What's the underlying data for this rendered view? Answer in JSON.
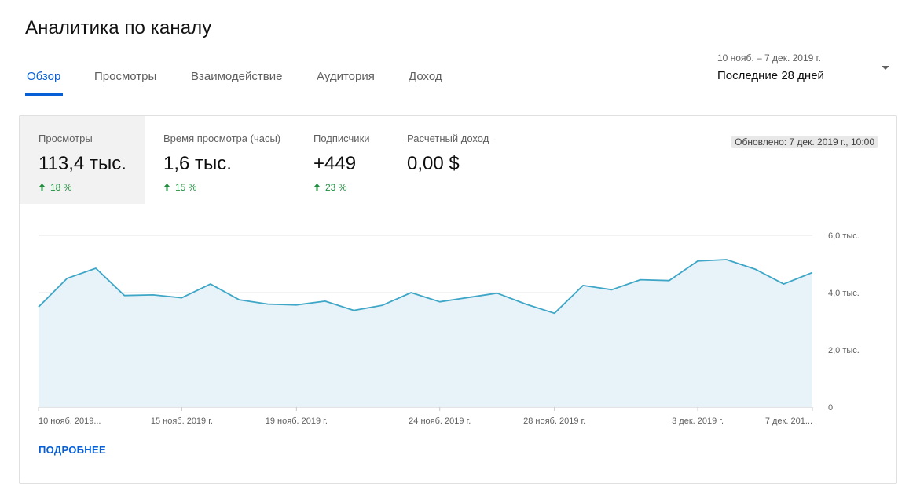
{
  "page": {
    "title": "Аналитика по каналу"
  },
  "tabs": [
    {
      "label": "Обзор",
      "active": true
    },
    {
      "label": "Просмотры",
      "active": false
    },
    {
      "label": "Взаимодействие",
      "active": false
    },
    {
      "label": "Аудитория",
      "active": false
    },
    {
      "label": "Доход",
      "active": false
    }
  ],
  "date_picker": {
    "range": "10 нояб. – 7 дек. 2019 г.",
    "period": "Последние 28 дней",
    "icon": "dropdown-arrow-icon"
  },
  "metrics": [
    {
      "label": "Просмотры",
      "value": "113,4 тыс.",
      "delta": "18 %",
      "selected": true
    },
    {
      "label": "Время просмотра (часы)",
      "value": "1,6 тыс.",
      "delta": "15 %",
      "selected": false
    },
    {
      "label": "Подписчики",
      "value": "+449",
      "delta": "23 %",
      "selected": false
    },
    {
      "label": "Расчетный доход",
      "value": "0,00 $",
      "delta": "",
      "selected": false,
      "icon": "clock-icon"
    }
  ],
  "updated": "Обновлено: 7 дек. 2019 г., 10:00",
  "more_link": "ПОДРОБНЕЕ",
  "colors": {
    "accent": "#065fd4",
    "line": "#3ea6c6",
    "area_fill": "#e8f3f9",
    "positive": "#1e8e3e",
    "selected_metric_bg": "#f2f2f2"
  },
  "chart_data": {
    "type": "area",
    "series": [
      {
        "values": [
          3500,
          4500,
          4850,
          3900,
          3920,
          3820,
          4300,
          3750,
          3600,
          3570,
          3700,
          3380,
          3560,
          4000,
          3680,
          3830,
          3980,
          3600,
          3280,
          4250,
          4100,
          4450,
          4420,
          5100,
          5150,
          4820,
          4300,
          4700
        ]
      }
    ],
    "x_start_label": "10 нояб. 2019...",
    "x_tick_labels": [
      {
        "index": 0,
        "label": "10 нояб. 2019..."
      },
      {
        "index": 5,
        "label": "15 нояб. 2019 г."
      },
      {
        "index": 9,
        "label": "19 нояб. 2019 г."
      },
      {
        "index": 14,
        "label": "24 нояб. 2019 г."
      },
      {
        "index": 18,
        "label": "28 нояб. 2019 г."
      },
      {
        "index": 23,
        "label": "3 дек. 2019 г."
      },
      {
        "index": 27,
        "label": "7 дек. 201..."
      }
    ],
    "y_ticks": [
      {
        "value": 0,
        "label": "0"
      },
      {
        "value": 2000,
        "label": "2,0 тыс."
      },
      {
        "value": 4000,
        "label": "4,0 тыс."
      },
      {
        "value": 6000,
        "label": "6,0 тыс."
      }
    ],
    "ylim": [
      0,
      6000
    ],
    "grid": true,
    "y_axis_side": "right"
  }
}
